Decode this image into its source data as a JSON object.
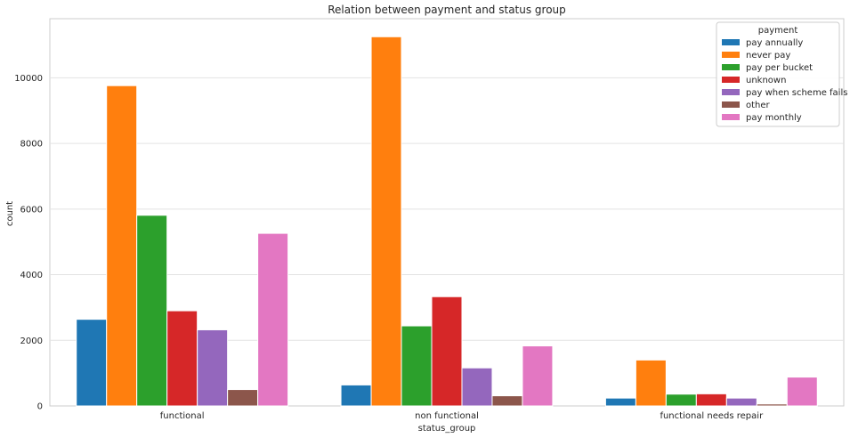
{
  "chart_data": {
    "type": "bar",
    "title": "Relation between payment and status group",
    "xlabel": "status_group",
    "ylabel": "count",
    "categories": [
      "functional",
      "non functional",
      "functional needs repair"
    ],
    "ylim": [
      0,
      11800
    ],
    "yticks": [
      0,
      2000,
      4000,
      6000,
      8000,
      10000
    ],
    "grid": true,
    "legend_title": "payment",
    "legend_position": "top-right",
    "series": [
      {
        "name": "pay annually",
        "color": "#1f77b4",
        "values": [
          2640,
          640,
          240
        ]
      },
      {
        "name": "never pay",
        "color": "#ff7f0e",
        "values": [
          9760,
          11250,
          1400
        ]
      },
      {
        "name": "pay per bucket",
        "color": "#2ca02c",
        "values": [
          5810,
          2440,
          360
        ]
      },
      {
        "name": "unknown",
        "color": "#d62728",
        "values": [
          2900,
          3330,
          370
        ]
      },
      {
        "name": "pay when scheme fails",
        "color": "#9467bd",
        "values": [
          2320,
          1160,
          240
        ]
      },
      {
        "name": "other",
        "color": "#8c564b",
        "values": [
          500,
          310,
          60
        ]
      },
      {
        "name": "pay monthly",
        "color": "#e377c2",
        "values": [
          5260,
          1830,
          880
        ]
      }
    ]
  }
}
